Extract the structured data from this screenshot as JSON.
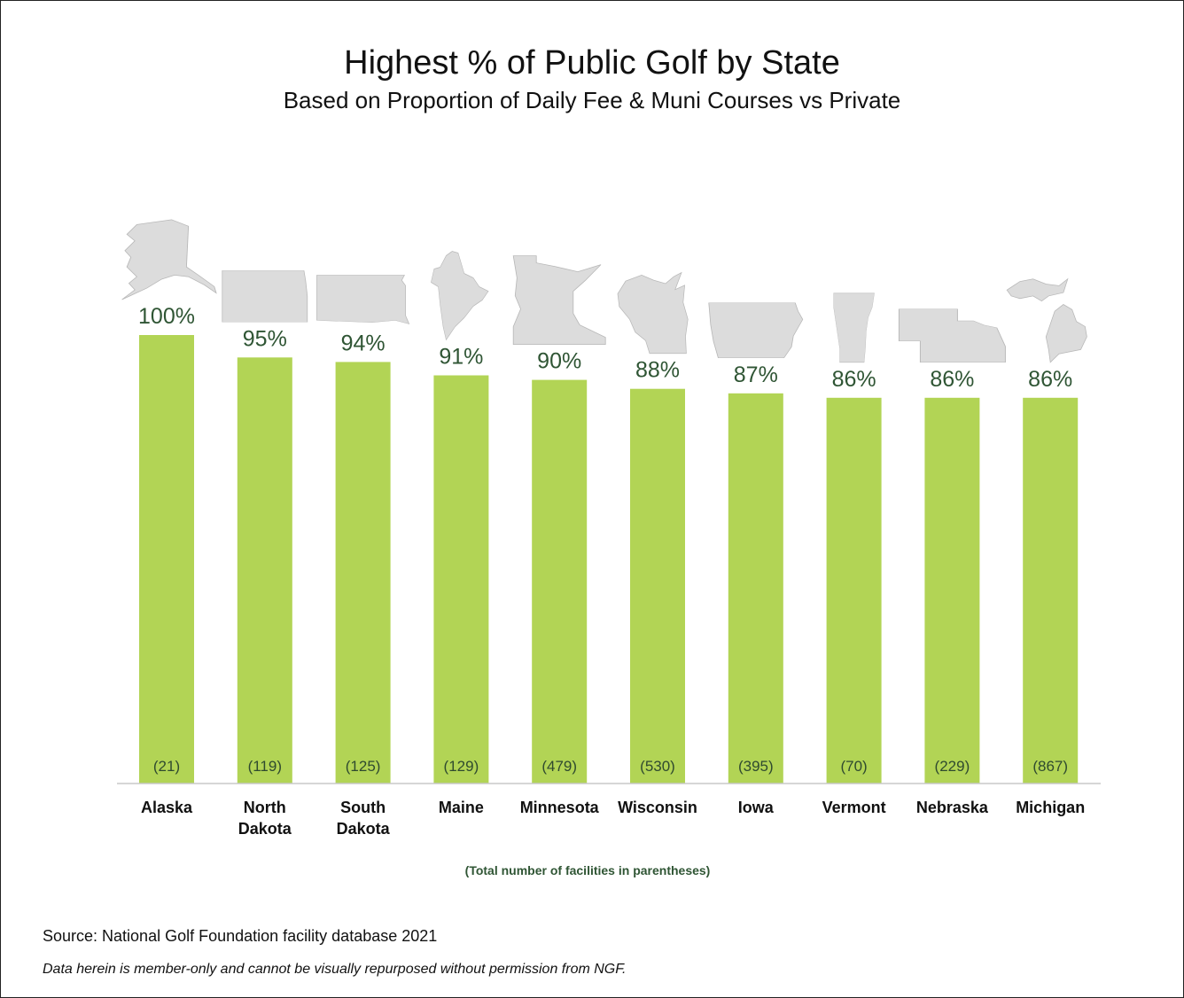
{
  "chart_data": {
    "type": "bar",
    "title": "Highest % of Public Golf by State",
    "subtitle": "Based on Proportion of Daily Fee & Muni Courses vs Private",
    "categories": [
      "Alaska",
      "North Dakota",
      "South Dakota",
      "Maine",
      "Minnesota",
      "Wisconsin",
      "Iowa",
      "Vermont",
      "Nebraska",
      "Michigan"
    ],
    "category_lines": [
      [
        "Alaska"
      ],
      [
        "North",
        "Dakota"
      ],
      [
        "South",
        "Dakota"
      ],
      [
        "Maine"
      ],
      [
        "Minnesota"
      ],
      [
        "Wisconsin"
      ],
      [
        "Iowa"
      ],
      [
        "Vermont"
      ],
      [
        "Nebraska"
      ],
      [
        "Michigan"
      ]
    ],
    "values": [
      100,
      95,
      94,
      91,
      90,
      88,
      87,
      86,
      86,
      86
    ],
    "value_labels": [
      "100%",
      "95%",
      "94%",
      "91%",
      "90%",
      "88%",
      "87%",
      "86%",
      "86%",
      "86%"
    ],
    "facility_counts": [
      "(21)",
      "(119)",
      "(125)",
      "(129)",
      "(479)",
      "(530)",
      "(395)",
      "(70)",
      "(229)",
      "(867)"
    ],
    "ylim": [
      0,
      100
    ],
    "grid": false,
    "legend": "none",
    "xlabel": "",
    "ylabel": "",
    "bar_color": "#b2d455",
    "label_color": "#2f5534",
    "map_color": "#dcdcdc",
    "map_icons": [
      "alaska-icon",
      "north-dakota-icon",
      "south-dakota-icon",
      "maine-icon",
      "minnesota-icon",
      "wisconsin-icon",
      "iowa-icon",
      "vermont-icon",
      "nebraska-icon",
      "michigan-icon"
    ]
  },
  "note": "(Total number of facilities in parentheses)",
  "source": "Source: National Golf Foundation facility database 2021",
  "disclaimer": "Data herein is member-only and cannot be visually repurposed without permission from NGF."
}
